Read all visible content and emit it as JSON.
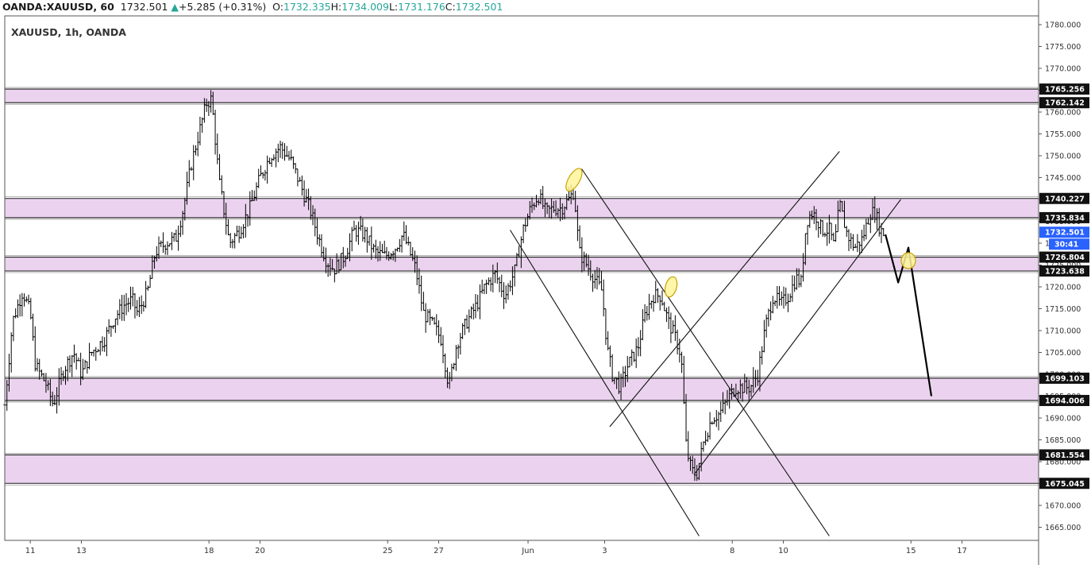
{
  "header": {
    "symbol": "OANDA:XAUUSD, 60",
    "last": "1732.501",
    "change": "+5.285 (+0.31%)",
    "o_label": "O:",
    "o_value": "1732.335",
    "h_label": "H:",
    "h_value": "1734.009",
    "l_label": "L:",
    "l_value": "1731.176",
    "c_label": "C:",
    "c_value": "1732.501"
  },
  "colors": {
    "zone_fill": "#ebd3ef",
    "zone_border": "#1a1a1a",
    "candle": "#000000",
    "marker_fill": "#fff59a",
    "marker_stroke": "#c8a200",
    "price_label_bg": "#111111",
    "current_price_bg": "#2962ff",
    "countdown_bg": "#2962ff"
  },
  "chart_data": {
    "type": "candlestick",
    "title": "XAUUSD, 1h, OANDA",
    "ylim": [
      1662,
      1782
    ],
    "y_ticks": [
      "1780.000",
      "1775.000",
      "1770.000",
      "1765.000",
      "1760.000",
      "1755.000",
      "1750.000",
      "1745.000",
      "1740.000",
      "1735.000",
      "1730.000",
      "1725.000",
      "1720.000",
      "1715.000",
      "1710.000",
      "1705.000",
      "1700.000",
      "1695.000",
      "1690.000",
      "1685.000",
      "1680.000",
      "1675.000",
      "1670.000",
      "1665.000"
    ],
    "x_ticks": [
      {
        "label": "11",
        "x": 1
      },
      {
        "label": "13",
        "x": 3
      },
      {
        "label": "18",
        "x": 8
      },
      {
        "label": "20",
        "x": 10
      },
      {
        "label": "25",
        "x": 15
      },
      {
        "label": "27",
        "x": 17
      },
      {
        "label": "Jun",
        "x": 20.5
      },
      {
        "label": "3",
        "x": 23.5
      },
      {
        "label": "8",
        "x": 28.5
      },
      {
        "label": "10",
        "x": 30.5
      },
      {
        "label": "15",
        "x": 35.5
      },
      {
        "label": "17",
        "x": 37.5
      }
    ],
    "xlim": [
      0,
      40.5
    ],
    "zones": [
      {
        "low": 1762.142,
        "high": 1765.256
      },
      {
        "low": 1735.834,
        "high": 1740.227
      },
      {
        "low": 1723.638,
        "high": 1726.804
      },
      {
        "low": 1694.006,
        "high": 1699.103
      },
      {
        "low": 1675.045,
        "high": 1681.554
      }
    ],
    "price_labels": [
      "1765.256",
      "1762.142",
      "1740.227",
      "1735.834",
      "1726.804",
      "1723.638",
      "1699.103",
      "1694.006",
      "1681.554",
      "1675.045"
    ],
    "current_price": "1732.501",
    "countdown": "30:41",
    "path": [
      [
        0,
        1693
      ],
      [
        0.3,
        1712
      ],
      [
        0.7,
        1719
      ],
      [
        1.0,
        1714
      ],
      [
        1.2,
        1702
      ],
      [
        1.6,
        1698
      ],
      [
        1.9,
        1693
      ],
      [
        2.3,
        1701
      ],
      [
        2.7,
        1705
      ],
      [
        3.0,
        1700
      ],
      [
        3.4,
        1705
      ],
      [
        3.9,
        1708
      ],
      [
        4.3,
        1713
      ],
      [
        4.7,
        1716
      ],
      [
        5.0,
        1717
      ],
      [
        5.2,
        1714
      ],
      [
        5.6,
        1719
      ],
      [
        5.9,
        1728
      ],
      [
        6.3,
        1730
      ],
      [
        6.7,
        1731
      ],
      [
        7.0,
        1738
      ],
      [
        7.3,
        1748
      ],
      [
        7.6,
        1755
      ],
      [
        7.9,
        1762
      ],
      [
        8.1,
        1763
      ],
      [
        8.4,
        1744
      ],
      [
        8.8,
        1730
      ],
      [
        9.2,
        1733
      ],
      [
        9.6,
        1738
      ],
      [
        10.0,
        1745
      ],
      [
        10.4,
        1750
      ],
      [
        10.8,
        1752
      ],
      [
        11.2,
        1749
      ],
      [
        11.6,
        1743
      ],
      [
        12.0,
        1737
      ],
      [
        12.3,
        1731
      ],
      [
        12.6,
        1726
      ],
      [
        12.9,
        1724
      ],
      [
        13.3,
        1727
      ],
      [
        13.7,
        1733
      ],
      [
        14.1,
        1732
      ],
      [
        14.5,
        1728
      ],
      [
        14.9,
        1727
      ],
      [
        15.3,
        1729
      ],
      [
        15.6,
        1732
      ],
      [
        15.8,
        1729
      ],
      [
        16.1,
        1724
      ],
      [
        16.4,
        1714
      ],
      [
        16.8,
        1711
      ],
      [
        17.1,
        1708
      ],
      [
        17.4,
        1697
      ],
      [
        17.7,
        1707
      ],
      [
        18.1,
        1712
      ],
      [
        18.5,
        1716
      ],
      [
        18.8,
        1720
      ],
      [
        19.2,
        1723
      ],
      [
        19.6,
        1718
      ],
      [
        20.0,
        1724
      ],
      [
        20.3,
        1733
      ],
      [
        20.6,
        1738
      ],
      [
        20.9,
        1741
      ],
      [
        21.2,
        1737
      ],
      [
        21.5,
        1738
      ],
      [
        21.8,
        1738
      ],
      [
        22.1,
        1740
      ],
      [
        22.3,
        1742
      ],
      [
        22.5,
        1728
      ],
      [
        22.8,
        1725
      ],
      [
        23.1,
        1722
      ],
      [
        23.4,
        1719
      ],
      [
        23.6,
        1706
      ],
      [
        23.8,
        1700
      ],
      [
        24.1,
        1697
      ],
      [
        24.4,
        1702
      ],
      [
        24.8,
        1706
      ],
      [
        25.1,
        1714
      ],
      [
        25.4,
        1718
      ],
      [
        25.7,
        1718
      ],
      [
        26.0,
        1712
      ],
      [
        26.3,
        1708
      ],
      [
        26.5,
        1704
      ],
      [
        26.7,
        1683
      ],
      [
        26.9,
        1678
      ],
      [
        27.1,
        1677
      ],
      [
        27.4,
        1685
      ],
      [
        27.7,
        1690
      ],
      [
        28.0,
        1691
      ],
      [
        28.3,
        1694
      ],
      [
        28.6,
        1697
      ],
      [
        28.9,
        1697
      ],
      [
        29.2,
        1697
      ],
      [
        29.5,
        1700
      ],
      [
        29.8,
        1711
      ],
      [
        30.1,
        1718
      ],
      [
        30.4,
        1716
      ],
      [
        30.7,
        1718
      ],
      [
        31.0,
        1722
      ],
      [
        31.2,
        1721
      ],
      [
        31.4,
        1735
      ],
      [
        31.6,
        1737
      ],
      [
        31.8,
        1736
      ],
      [
        32.0,
        1733
      ],
      [
        32.3,
        1733
      ],
      [
        32.5,
        1729
      ],
      [
        32.7,
        1739
      ],
      [
        33.0,
        1732
      ],
      [
        33.3,
        1729
      ],
      [
        33.6,
        1731
      ],
      [
        33.9,
        1737
      ],
      [
        34.1,
        1737
      ],
      [
        34.3,
        1733
      ],
      [
        34.5,
        1732
      ]
    ],
    "trendlines": [
      [
        [
          19.8,
          1733
        ],
        [
          27.2,
          1663
        ]
      ],
      [
        [
          22.6,
          1747
        ],
        [
          32.3,
          1663
        ]
      ],
      [
        [
          23.7,
          1688
        ],
        [
          32.7,
          1751
        ]
      ],
      [
        [
          27.0,
          1677
        ],
        [
          35.1,
          1740
        ]
      ]
    ],
    "projection": [
      [
        34.5,
        1732
      ],
      [
        35.0,
        1721
      ],
      [
        35.4,
        1729
      ],
      [
        36.3,
        1695
      ]
    ],
    "markers": [
      [
        22.3,
        1744.5
      ],
      [
        26.1,
        1720
      ],
      [
        35.4,
        1726
      ]
    ]
  }
}
